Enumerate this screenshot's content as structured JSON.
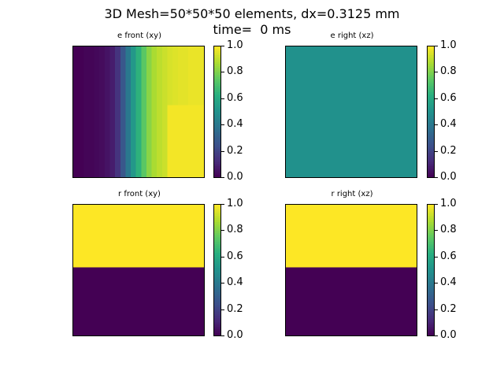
{
  "figure": {
    "title_line1": "3D Mesh=50*50*50 elements, dx=0.3125 mm",
    "title_line2": "time=  0 ms"
  },
  "colormap": {
    "name": "viridis",
    "stops": [
      "#440154",
      "#472d7b",
      "#3b528b",
      "#2c728e",
      "#21918c",
      "#28ae80",
      "#5ec962",
      "#addc30",
      "#fde725"
    ]
  },
  "chart_data": [
    {
      "type": "heatmap",
      "title": "e front (xy)",
      "colorbar": {
        "range": [
          0,
          1
        ],
        "ticks": [
          "0.0",
          "0.2",
          "0.4",
          "0.6",
          "0.8",
          "1.0"
        ]
      },
      "pattern": "gradient-x",
      "column_values": [
        0.0,
        0.0,
        0.01,
        0.01,
        0.02,
        0.03,
        0.05,
        0.08,
        0.15,
        0.27,
        0.4,
        0.53,
        0.64,
        0.74,
        0.82,
        0.87,
        0.9,
        0.92,
        0.94,
        0.95,
        0.96,
        0.96,
        0.97,
        0.97,
        0.97
      ],
      "note_lower_right": 0.985
    },
    {
      "type": "heatmap",
      "title": "e right (xz)",
      "colorbar": {
        "range": [
          0,
          1
        ],
        "ticks": [
          "0.0",
          "0.2",
          "0.4",
          "0.6",
          "0.8",
          "1.0"
        ]
      },
      "pattern": "uniform",
      "value": 0.5
    },
    {
      "type": "heatmap",
      "title": "r front (xy)",
      "colorbar": {
        "range": [
          0,
          1
        ],
        "ticks": [
          "0.0",
          "0.2",
          "0.4",
          "0.6",
          "0.8",
          "1.0"
        ]
      },
      "pattern": "split-y",
      "top_value": 1.0,
      "bottom_value": 0.0,
      "split_fraction_from_top": 0.48
    },
    {
      "type": "heatmap",
      "title": "r right (xz)",
      "colorbar": {
        "range": [
          0,
          1
        ],
        "ticks": [
          "0.0",
          "0.2",
          "0.4",
          "0.6",
          "0.8",
          "1.0"
        ]
      },
      "pattern": "split-y",
      "top_value": 1.0,
      "bottom_value": 0.0,
      "split_fraction_from_top": 0.48
    }
  ]
}
